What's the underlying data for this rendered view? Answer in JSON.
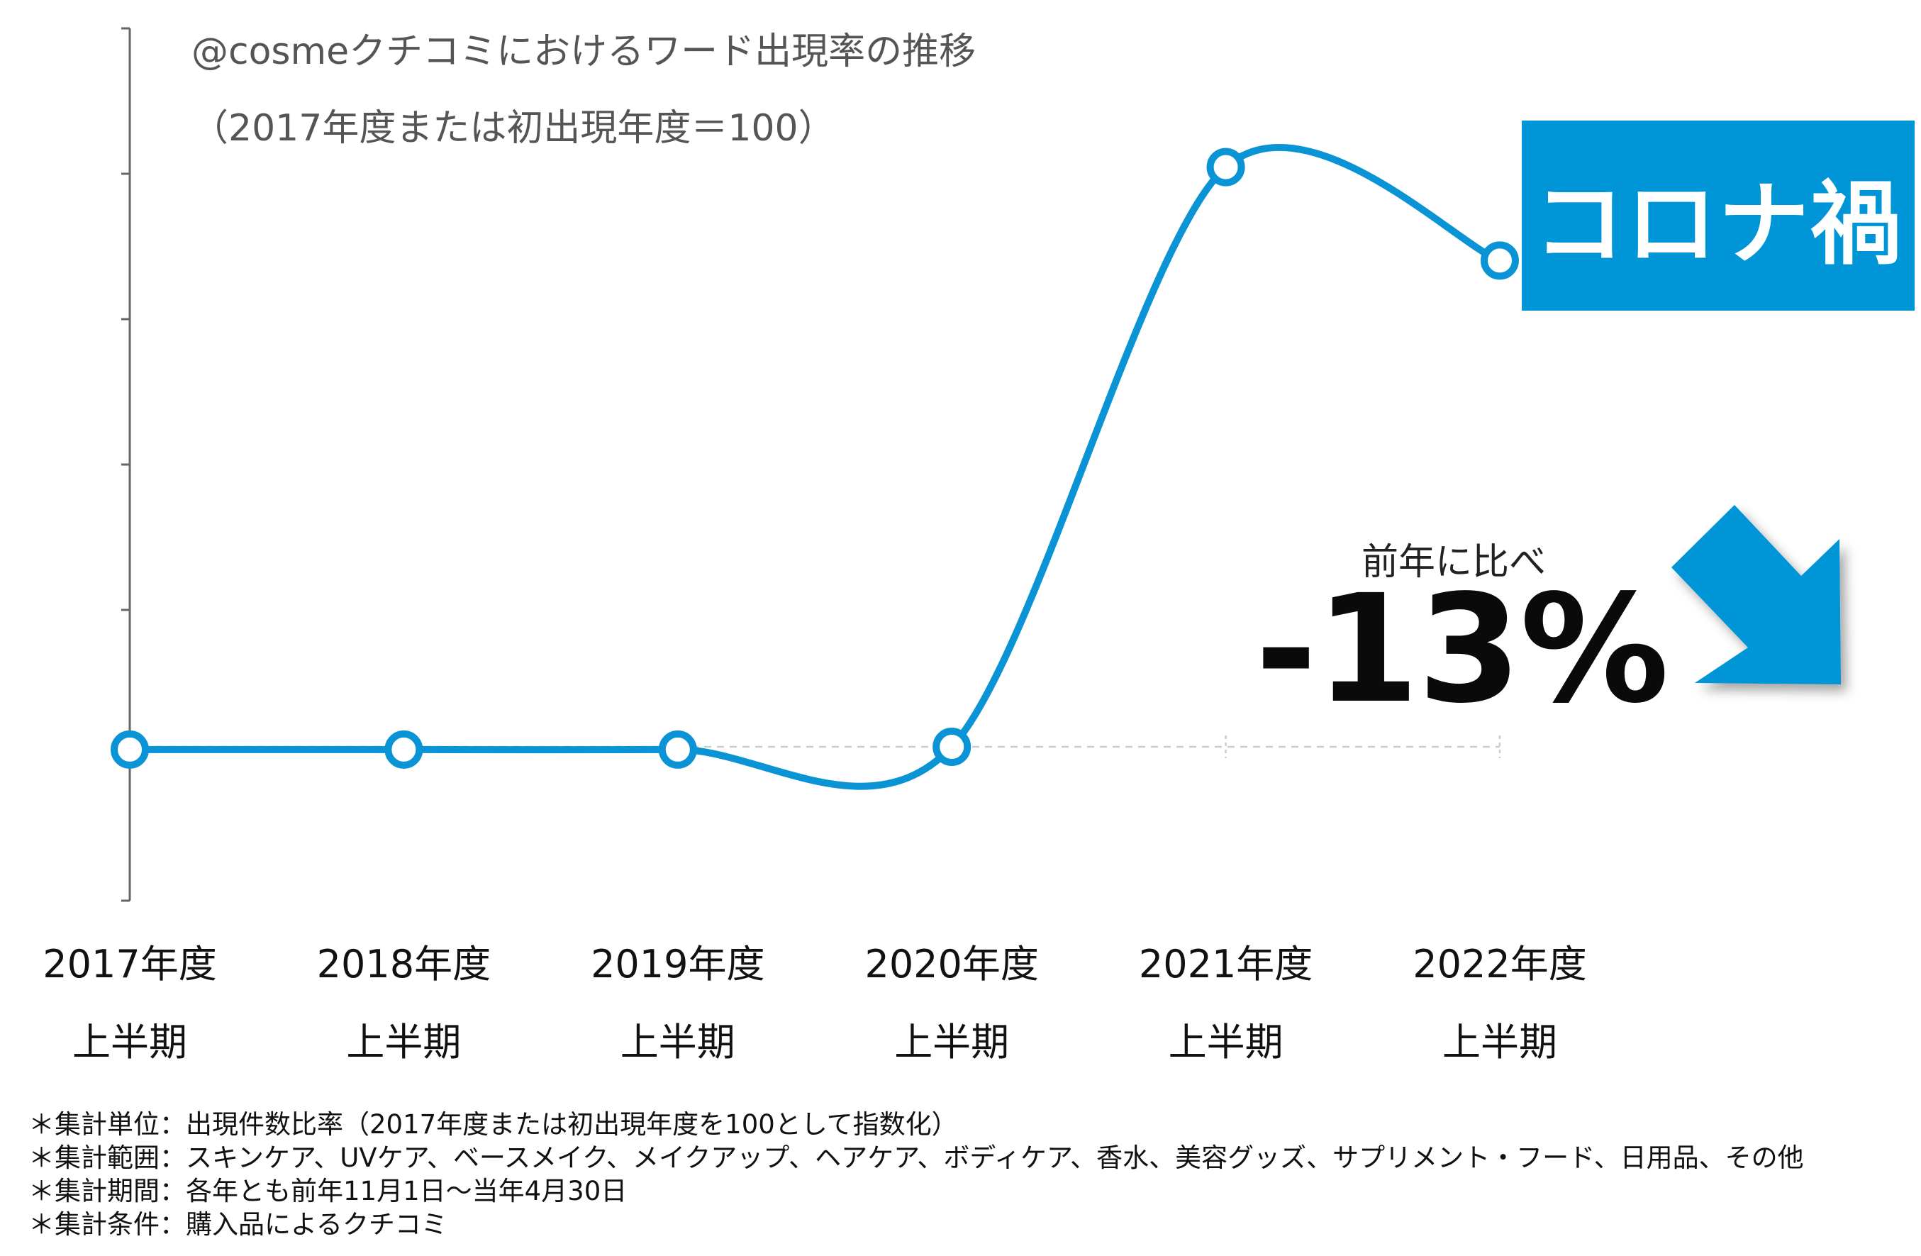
{
  "chart_data": {
    "type": "line",
    "title": "@cosmeクチコミにおけるワード出現率の推移",
    "subtitle": "（2017年度または初出現年度＝100）",
    "categories": [
      {
        "year": "2017年度",
        "half": "上半期"
      },
      {
        "year": "2018年度",
        "half": "上半期"
      },
      {
        "year": "2019年度",
        "half": "上半期"
      },
      {
        "year": "2020年度",
        "half": "上半期"
      },
      {
        "year": "2021年度",
        "half": "上半期"
      },
      {
        "year": "2022年度",
        "half": "上半期"
      }
    ],
    "series": [
      {
        "name": "ワード出現率",
        "values": [
          100,
          100,
          100,
          102,
          524,
          456
        ],
        "color": "#0a94d6"
      }
    ],
    "reference_line": 102,
    "ylim": [
      -10,
      625
    ],
    "xlabel": "",
    "ylabel": "",
    "grid": false,
    "annotations": {
      "highlight_label": "コロナ禍",
      "comparison_label": "前年に比べ",
      "comparison_value": "-13%"
    }
  },
  "notes": [
    "＊集計単位：出現件数比率（2017年度または初出現年度を100として指数化）",
    "＊集計範囲：スキンケア、UVケア、ベースメイク、メイクアップ、ヘアケア、ボディケア、香水、美容グッズ、サプリメント・フード、日用品、その他",
    "＊集計期間：各年とも前年11月1日〜当年4月30日",
    "＊集計条件：購入品によるクチコミ"
  ],
  "colors": {
    "accent": "#0095d6",
    "line": "#0a94d6",
    "axis": "#666666",
    "reference": "#cccccc"
  }
}
